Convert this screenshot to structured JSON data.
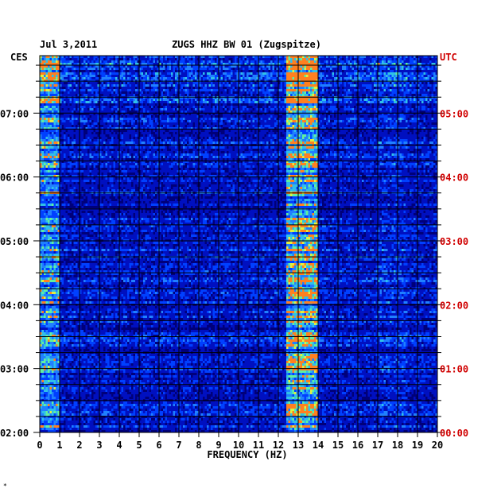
{
  "header": {
    "date": "Jul 3,2011",
    "station": "ZUGS HHZ BW 01 (Zugspitze)",
    "left_zone": "CES",
    "right_zone": "UTC"
  },
  "footer_mark": "*",
  "colors": {
    "background": "#ffffff",
    "plot_background": "#00007a",
    "grid": "#000000",
    "utc_label": "#d00000",
    "spectrum_low": "#0000a0",
    "spectrum_mid": "#2060ff",
    "spectrum_high": "#40e0e0",
    "spectrum_peak": "#ffff40"
  },
  "chart_data": {
    "type": "heatmap",
    "title": "ZUGS HHZ BW 01 (Zugspitze)",
    "date": "Jul 3,2011",
    "xlabel": "FREQUENCY (HZ)",
    "xlim": [
      0,
      20
    ],
    "x_ticks": [
      "0",
      "1",
      "2",
      "3",
      "4",
      "5",
      "6",
      "7",
      "8",
      "9",
      "10",
      "11",
      "12",
      "13",
      "14",
      "15",
      "16",
      "17",
      "18",
      "19",
      "20"
    ],
    "y_left_zone": "CES",
    "y_right_zone": "UTC",
    "y_ticks_left": [
      "07:00",
      "06:00",
      "05:00",
      "04:00",
      "03:00",
      "02:00"
    ],
    "y_ticks_right": [
      "05:00",
      "04:00",
      "03:00",
      "02:00",
      "01:00",
      "00:00"
    ],
    "y_range_utc_hours": [
      0,
      5.9
    ],
    "grid": true,
    "dominant_band_hz": [
      13,
      14
    ],
    "low_frequency_energy_hz": [
      0,
      1
    ]
  }
}
